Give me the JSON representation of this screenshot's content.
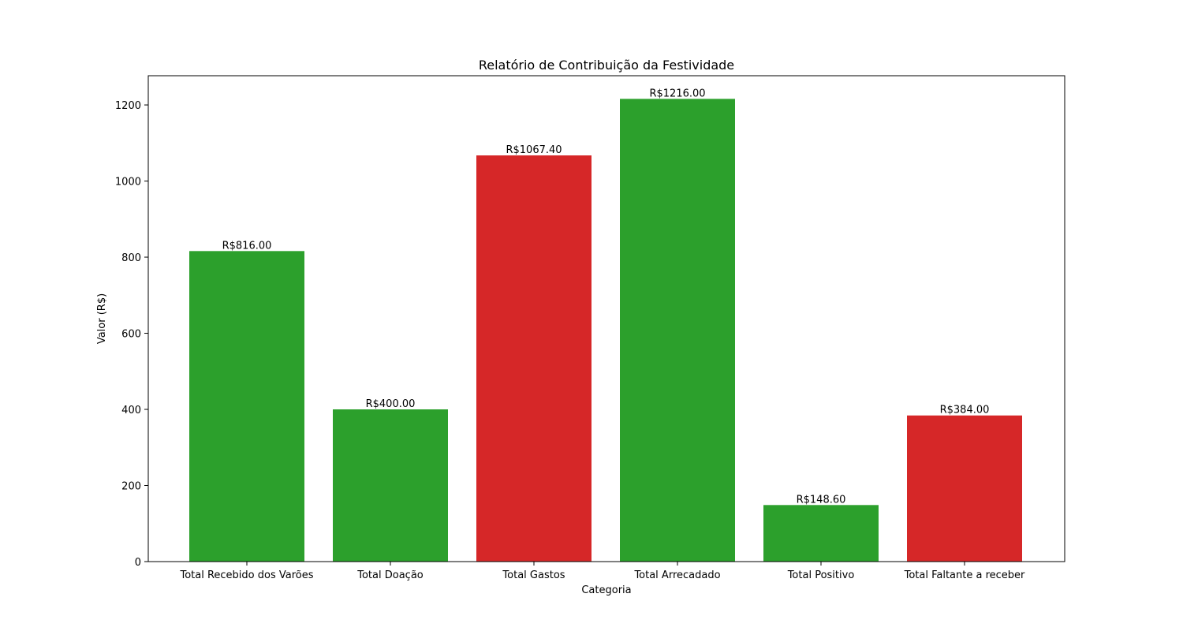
{
  "chart_data": {
    "type": "bar",
    "title": "Relatório de Contribuição da Festividade",
    "xlabel": "Categoria",
    "ylabel": "Valor (R$)",
    "categories": [
      "Total Recebido dos Varões",
      "Total Doação",
      "Total Gastos",
      "Total Arrecadado",
      "Total Positivo",
      "Total Faltante a receber"
    ],
    "values": [
      816.0,
      400.0,
      1067.4,
      1216.0,
      148.6,
      384.0
    ],
    "value_labels": [
      "R$816.00",
      "R$400.00",
      "R$1067.40",
      "R$1216.00",
      "R$148.60",
      "R$384.00"
    ],
    "bar_colors": [
      "#2ca02c",
      "#2ca02c",
      "#d62728",
      "#2ca02c",
      "#2ca02c",
      "#d62728"
    ],
    "ylim": [
      0,
      1276.8
    ],
    "yticks": [
      0,
      200,
      400,
      600,
      800,
      1000,
      1200
    ],
    "grid": false,
    "legend": "none"
  }
}
